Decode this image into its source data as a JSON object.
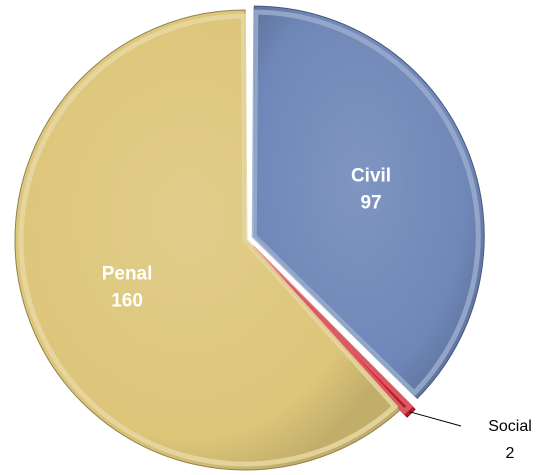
{
  "chart_data": {
    "type": "pie",
    "title": "",
    "slices": [
      {
        "label": "Civil",
        "value": 97,
        "color": "#6f87b8"
      },
      {
        "label": "Social",
        "value": 2,
        "color": "#d01f2b"
      },
      {
        "label": "Penal",
        "value": 160,
        "color": "#ddc67a"
      }
    ],
    "start_angle_deg": 0,
    "direction": "clockwise",
    "labels_inside": [
      "Civil",
      "Penal"
    ],
    "labels_outside": [
      "Social"
    ]
  }
}
